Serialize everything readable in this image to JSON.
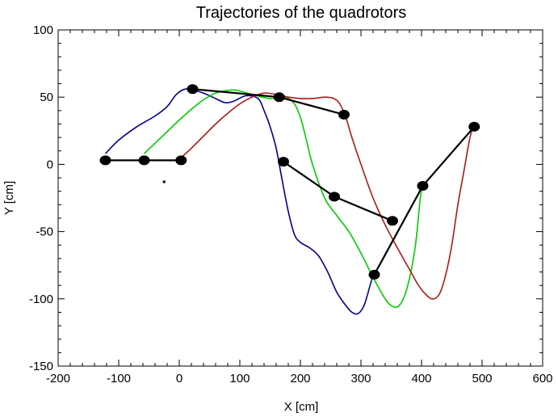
{
  "chart_data": {
    "type": "line",
    "title": "Trajectories of the quadrotors",
    "xlabel": "X [cm]",
    "ylabel": "Y [cm]",
    "xlim": [
      -200,
      600
    ],
    "ylim": [
      -150,
      100
    ],
    "xticks": [
      -200,
      -100,
      0,
      100,
      200,
      300,
      400,
      500,
      600
    ],
    "yticks": [
      -150,
      -100,
      -50,
      0,
      50,
      100
    ],
    "grid": false,
    "series": [
      {
        "color": "#00008b",
        "x": [
          -122,
          -100,
          -70,
          -40,
          -20,
          -5,
          10,
          25,
          40,
          55,
          75,
          90,
          110,
          130,
          140,
          150,
          160,
          170,
          180,
          190,
          200,
          215,
          230,
          245,
          260,
          275,
          285,
          295,
          305,
          315,
          320
        ],
        "y": [
          8,
          18,
          28,
          36,
          43,
          52,
          56,
          55,
          53,
          50,
          46,
          47,
          51,
          49,
          40,
          28,
          12,
          -12,
          -35,
          -52,
          -58,
          -62,
          -68,
          -80,
          -95,
          -105,
          -110,
          -111,
          -105,
          -90,
          -82
        ]
      },
      {
        "color": "#00cc00",
        "x": [
          -58,
          -30,
          0,
          20,
          40,
          60,
          80,
          95,
          120,
          150,
          175,
          190,
          200,
          210,
          220,
          240,
          260,
          280,
          300,
          320,
          340,
          350,
          360,
          370,
          380,
          390,
          398,
          402
        ],
        "y": [
          8,
          20,
          33,
          41,
          48,
          53,
          55,
          55,
          52,
          49,
          50,
          45,
          35,
          18,
          0,
          -25,
          -38,
          -50,
          -66,
          -84,
          -100,
          -105,
          -106,
          -100,
          -85,
          -60,
          -25,
          -16
        ]
      },
      {
        "color": "#aa1a1a",
        "x": [
          3,
          20,
          40,
          60,
          80,
          100,
          120,
          140,
          160,
          180,
          200,
          220,
          240,
          255,
          265,
          275,
          285,
          300,
          320,
          340,
          360,
          380,
          395,
          410,
          420,
          430,
          440,
          450,
          460,
          470,
          480,
          487
        ],
        "y": [
          5,
          12,
          21,
          30,
          38,
          45,
          50,
          53,
          52,
          50,
          49,
          49,
          50,
          49,
          45,
          35,
          20,
          0,
          -25,
          -45,
          -62,
          -78,
          -90,
          -98,
          -100,
          -96,
          -82,
          -60,
          -30,
          -5,
          20,
          30
        ]
      }
    ],
    "connector_lines": [
      {
        "x": [
          -122,
          -58,
          3
        ],
        "y": [
          3,
          3,
          3
        ]
      },
      {
        "x": [
          22,
          165,
          272
        ],
        "y": [
          56,
          50,
          37
        ]
      },
      {
        "x": [
          172,
          256,
          352
        ],
        "y": [
          2,
          -24,
          -42
        ]
      },
      {
        "x": [
          322,
          402,
          487
        ],
        "y": [
          -82,
          -16,
          28
        ]
      }
    ],
    "markers": {
      "x": [
        -122,
        -58,
        3,
        22,
        165,
        272,
        172,
        256,
        352,
        322,
        402,
        487
      ],
      "y": [
        3,
        3,
        3,
        56,
        50,
        37,
        2,
        -24,
        -42,
        -82,
        -16,
        28
      ]
    },
    "small_dot": {
      "x": -25,
      "y": -13
    }
  }
}
